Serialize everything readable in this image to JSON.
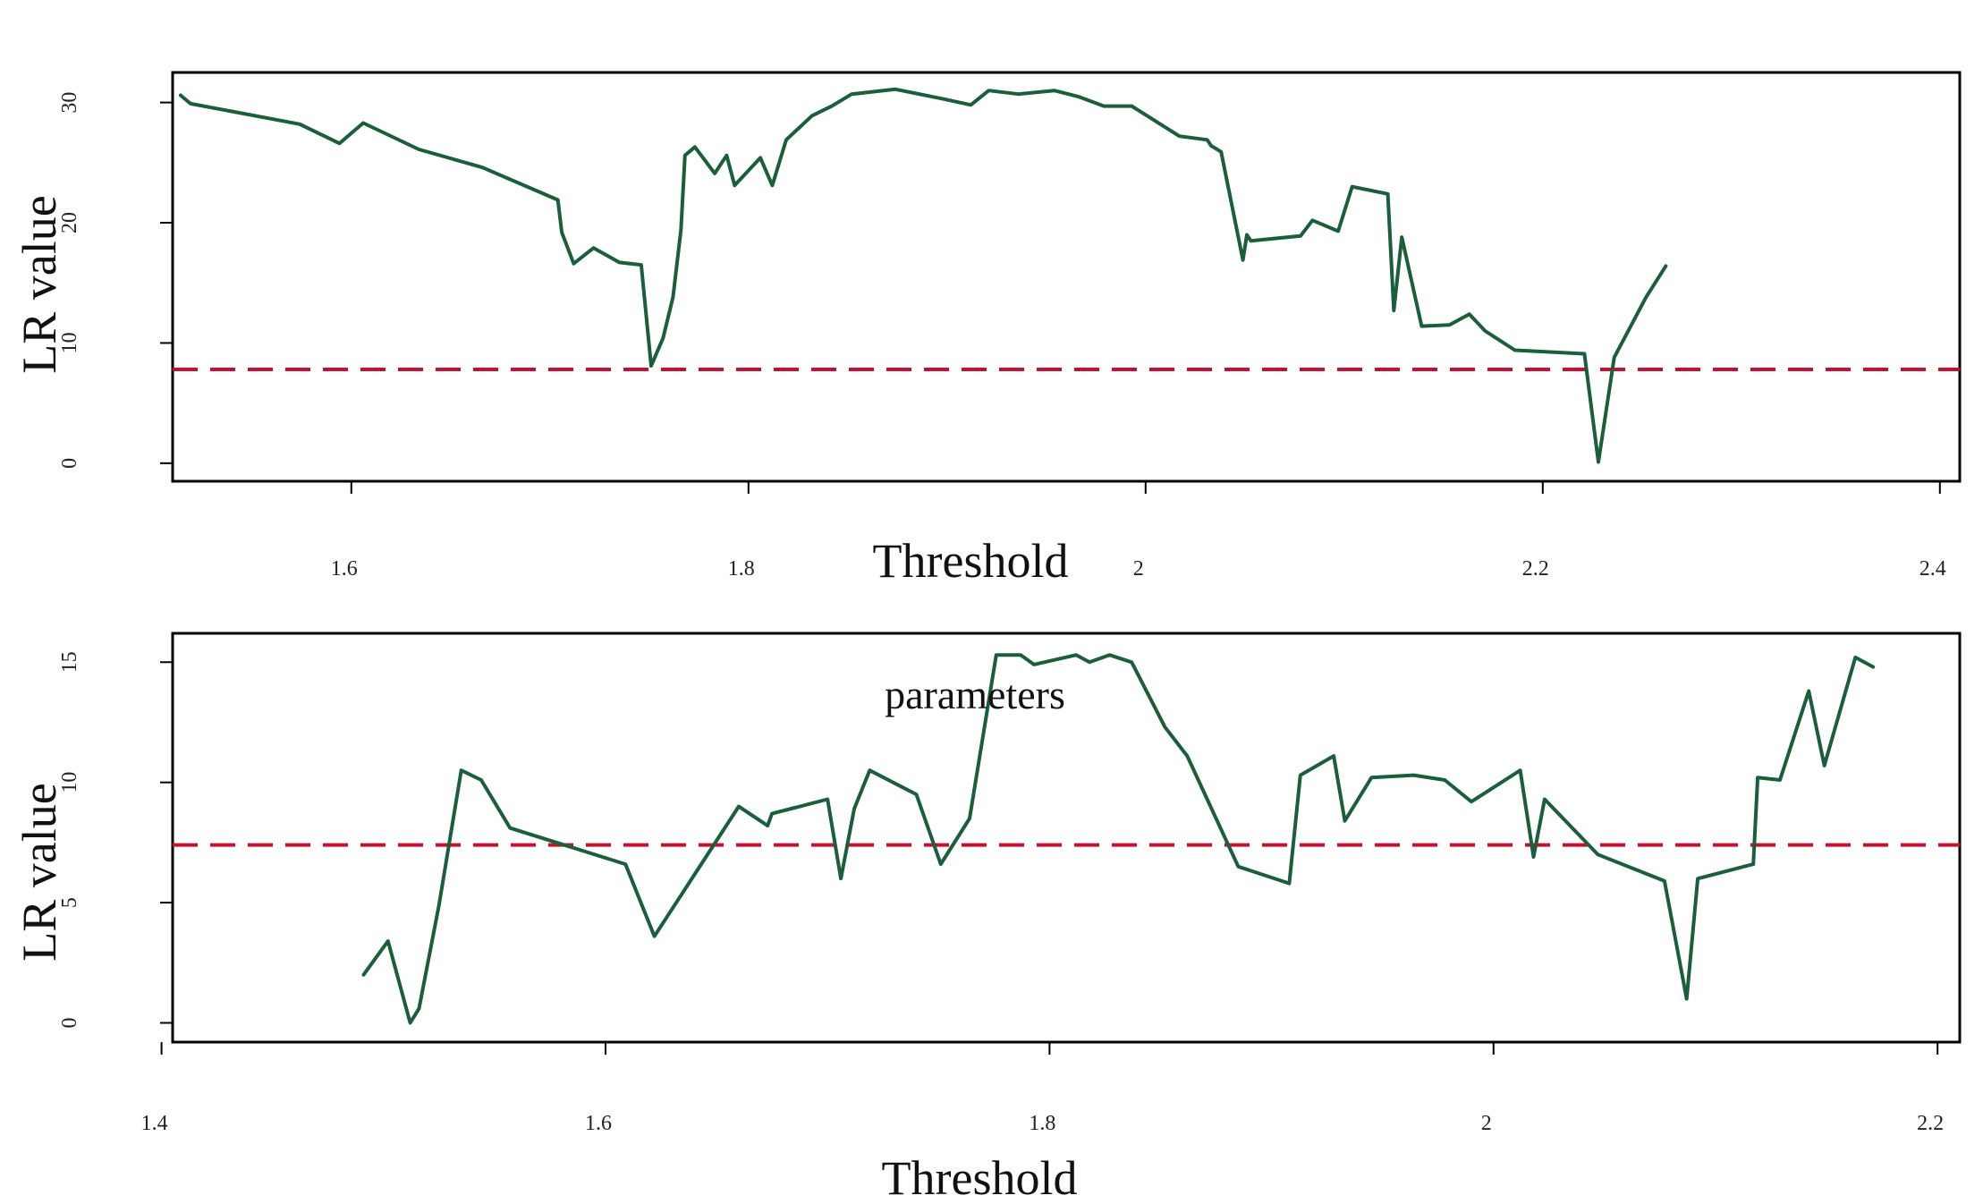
{
  "colors": {
    "series": "#1b5e3b",
    "reference": "#c8102e",
    "axis": "#000000"
  },
  "chart_data": [
    {
      "type": "line",
      "xlabel": "Threshold",
      "ylabel": "LR value",
      "xlim": [
        1.51,
        2.41
      ],
      "ylim": [
        -1.5,
        32.5
      ],
      "x_ticks": [
        1.6,
        1.8,
        2,
        2.2,
        2.4
      ],
      "x_tick_labels": [
        "1.6",
        "1.8",
        "2",
        "2.2",
        "2.4"
      ],
      "y_ticks": [
        0,
        10,
        20,
        30
      ],
      "y_tick_labels": [
        "0",
        "10",
        "20",
        "30"
      ],
      "reference_line": 7.8,
      "grid": false,
      "series": [
        {
          "x": [
            1.514,
            1.519,
            1.574,
            1.594,
            1.606,
            1.634,
            1.666,
            1.704,
            1.706,
            1.712,
            1.722,
            1.735,
            1.746,
            1.751,
            1.757,
            1.762,
            1.766,
            1.768,
            1.773,
            1.783,
            1.789,
            1.793,
            1.806,
            1.812,
            1.819,
            1.832,
            1.842,
            1.852,
            1.874,
            1.898,
            1.912,
            1.921,
            1.936,
            1.954,
            1.966,
            1.979,
            1.993,
            2.017,
            2.031,
            2.033,
            2.038,
            2.049,
            2.051,
            2.053,
            2.078,
            2.084,
            2.097,
            2.104,
            2.122,
            2.125,
            2.129,
            2.139,
            2.153,
            2.163,
            2.171,
            2.186,
            2.221,
            2.228,
            2.236,
            2.252,
            2.262
          ],
          "y": [
            30.6,
            29.9,
            28.2,
            26.6,
            28.3,
            26.1,
            24.6,
            21.9,
            19.2,
            16.6,
            17.9,
            16.7,
            16.5,
            8.1,
            10.4,
            13.8,
            19.4,
            25.6,
            26.3,
            24.1,
            25.6,
            23.1,
            25.4,
            23.1,
            26.9,
            28.9,
            29.7,
            30.7,
            31.1,
            30.3,
            29.8,
            31.0,
            30.7,
            31.0,
            30.5,
            29.7,
            29.7,
            27.2,
            26.9,
            26.4,
            25.9,
            16.9,
            19.0,
            18.5,
            18.9,
            20.2,
            19.3,
            23.0,
            22.4,
            12.7,
            18.8,
            11.4,
            11.5,
            12.4,
            11.0,
            9.4,
            9.1,
            0.1,
            8.8,
            13.8,
            16.4
          ]
        }
      ]
    },
    {
      "type": "line",
      "xlabel": "Threshold",
      "ylabel": "LR value",
      "xlim": [
        1.405,
        2.21
      ],
      "ylim": [
        -0.8,
        16.2
      ],
      "x_ticks": [
        1.4,
        1.6,
        1.8,
        2,
        2.2
      ],
      "x_tick_labels": [
        "1.4",
        "1.6",
        "1.8",
        "2",
        "2.2"
      ],
      "y_ticks": [
        0,
        5,
        10,
        15
      ],
      "y_tick_labels": [
        "0",
        "5",
        "10",
        "15"
      ],
      "reference_line": 7.4,
      "grid": false,
      "annotation": "parameters",
      "series": [
        {
          "x": [
            1.491,
            1.502,
            1.512,
            1.516,
            1.525,
            1.535,
            1.544,
            1.557,
            1.609,
            1.622,
            1.66,
            1.673,
            1.675,
            1.7,
            1.706,
            1.712,
            1.719,
            1.74,
            1.751,
            1.764,
            1.776,
            1.787,
            1.793,
            1.812,
            1.818,
            1.827,
            1.837,
            1.852,
            1.862,
            1.885,
            1.908,
            1.913,
            1.928,
            1.933,
            1.945,
            1.964,
            1.978,
            1.99,
            2.012,
            2.018,
            2.023,
            2.047,
            2.077,
            2.087,
            2.092,
            2.117,
            2.119,
            2.129,
            2.142,
            2.149,
            2.163,
            2.171
          ],
          "y": [
            2.0,
            3.4,
            0.0,
            0.6,
            4.9,
            10.5,
            10.1,
            8.1,
            6.6,
            3.6,
            9.0,
            8.2,
            8.7,
            9.3,
            6.0,
            8.9,
            10.5,
            9.5,
            6.6,
            8.5,
            15.3,
            15.3,
            14.9,
            15.3,
            15.0,
            15.3,
            15.0,
            12.3,
            11.1,
            6.5,
            5.8,
            10.3,
            11.1,
            8.4,
            10.2,
            10.3,
            10.1,
            9.2,
            10.5,
            6.9,
            9.3,
            7.0,
            5.9,
            1.0,
            6.0,
            6.6,
            10.2,
            10.1,
            13.8,
            10.7,
            15.2,
            14.8
          ]
        }
      ]
    }
  ]
}
